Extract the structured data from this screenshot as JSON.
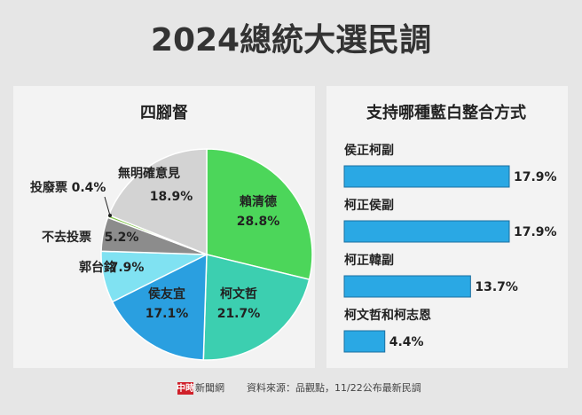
{
  "title": "2024總統大選民調",
  "logo": "中時",
  "logo_text": "新聞網",
  "source": "資料來源：品觀點，11/22公布最新民調",
  "chart_data": [
    {
      "type": "pie",
      "title": "四腳督",
      "categories": [
        "賴清德",
        "柯文哲",
        "侯友宜",
        "郭台銘",
        "不去投票",
        "投廢票",
        "無明確意見"
      ],
      "values": [
        28.8,
        21.7,
        17.1,
        7.9,
        5.2,
        0.4,
        18.9
      ],
      "value_labels": [
        "28.8%",
        "21.7%",
        "17.1%",
        "7.9%",
        "5.2%",
        "0.4%",
        "18.9%"
      ],
      "colors": [
        "#4cd65a",
        "#3ccfb0",
        "#2a9fe0",
        "#80e2f2",
        "#8c8c8c",
        "#7cc444",
        "#d3d3d3"
      ]
    },
    {
      "type": "hbar",
      "title": "支持哪種藍白整合方式",
      "categories": [
        "侯正柯副",
        "柯正侯副",
        "柯正韓副",
        "柯文哲和柯志恩"
      ],
      "values": [
        17.9,
        17.9,
        13.7,
        4.4
      ],
      "value_labels": [
        "17.9%",
        "17.9%",
        "13.7%",
        "4.4%"
      ],
      "color": "#2aa8e4"
    }
  ]
}
